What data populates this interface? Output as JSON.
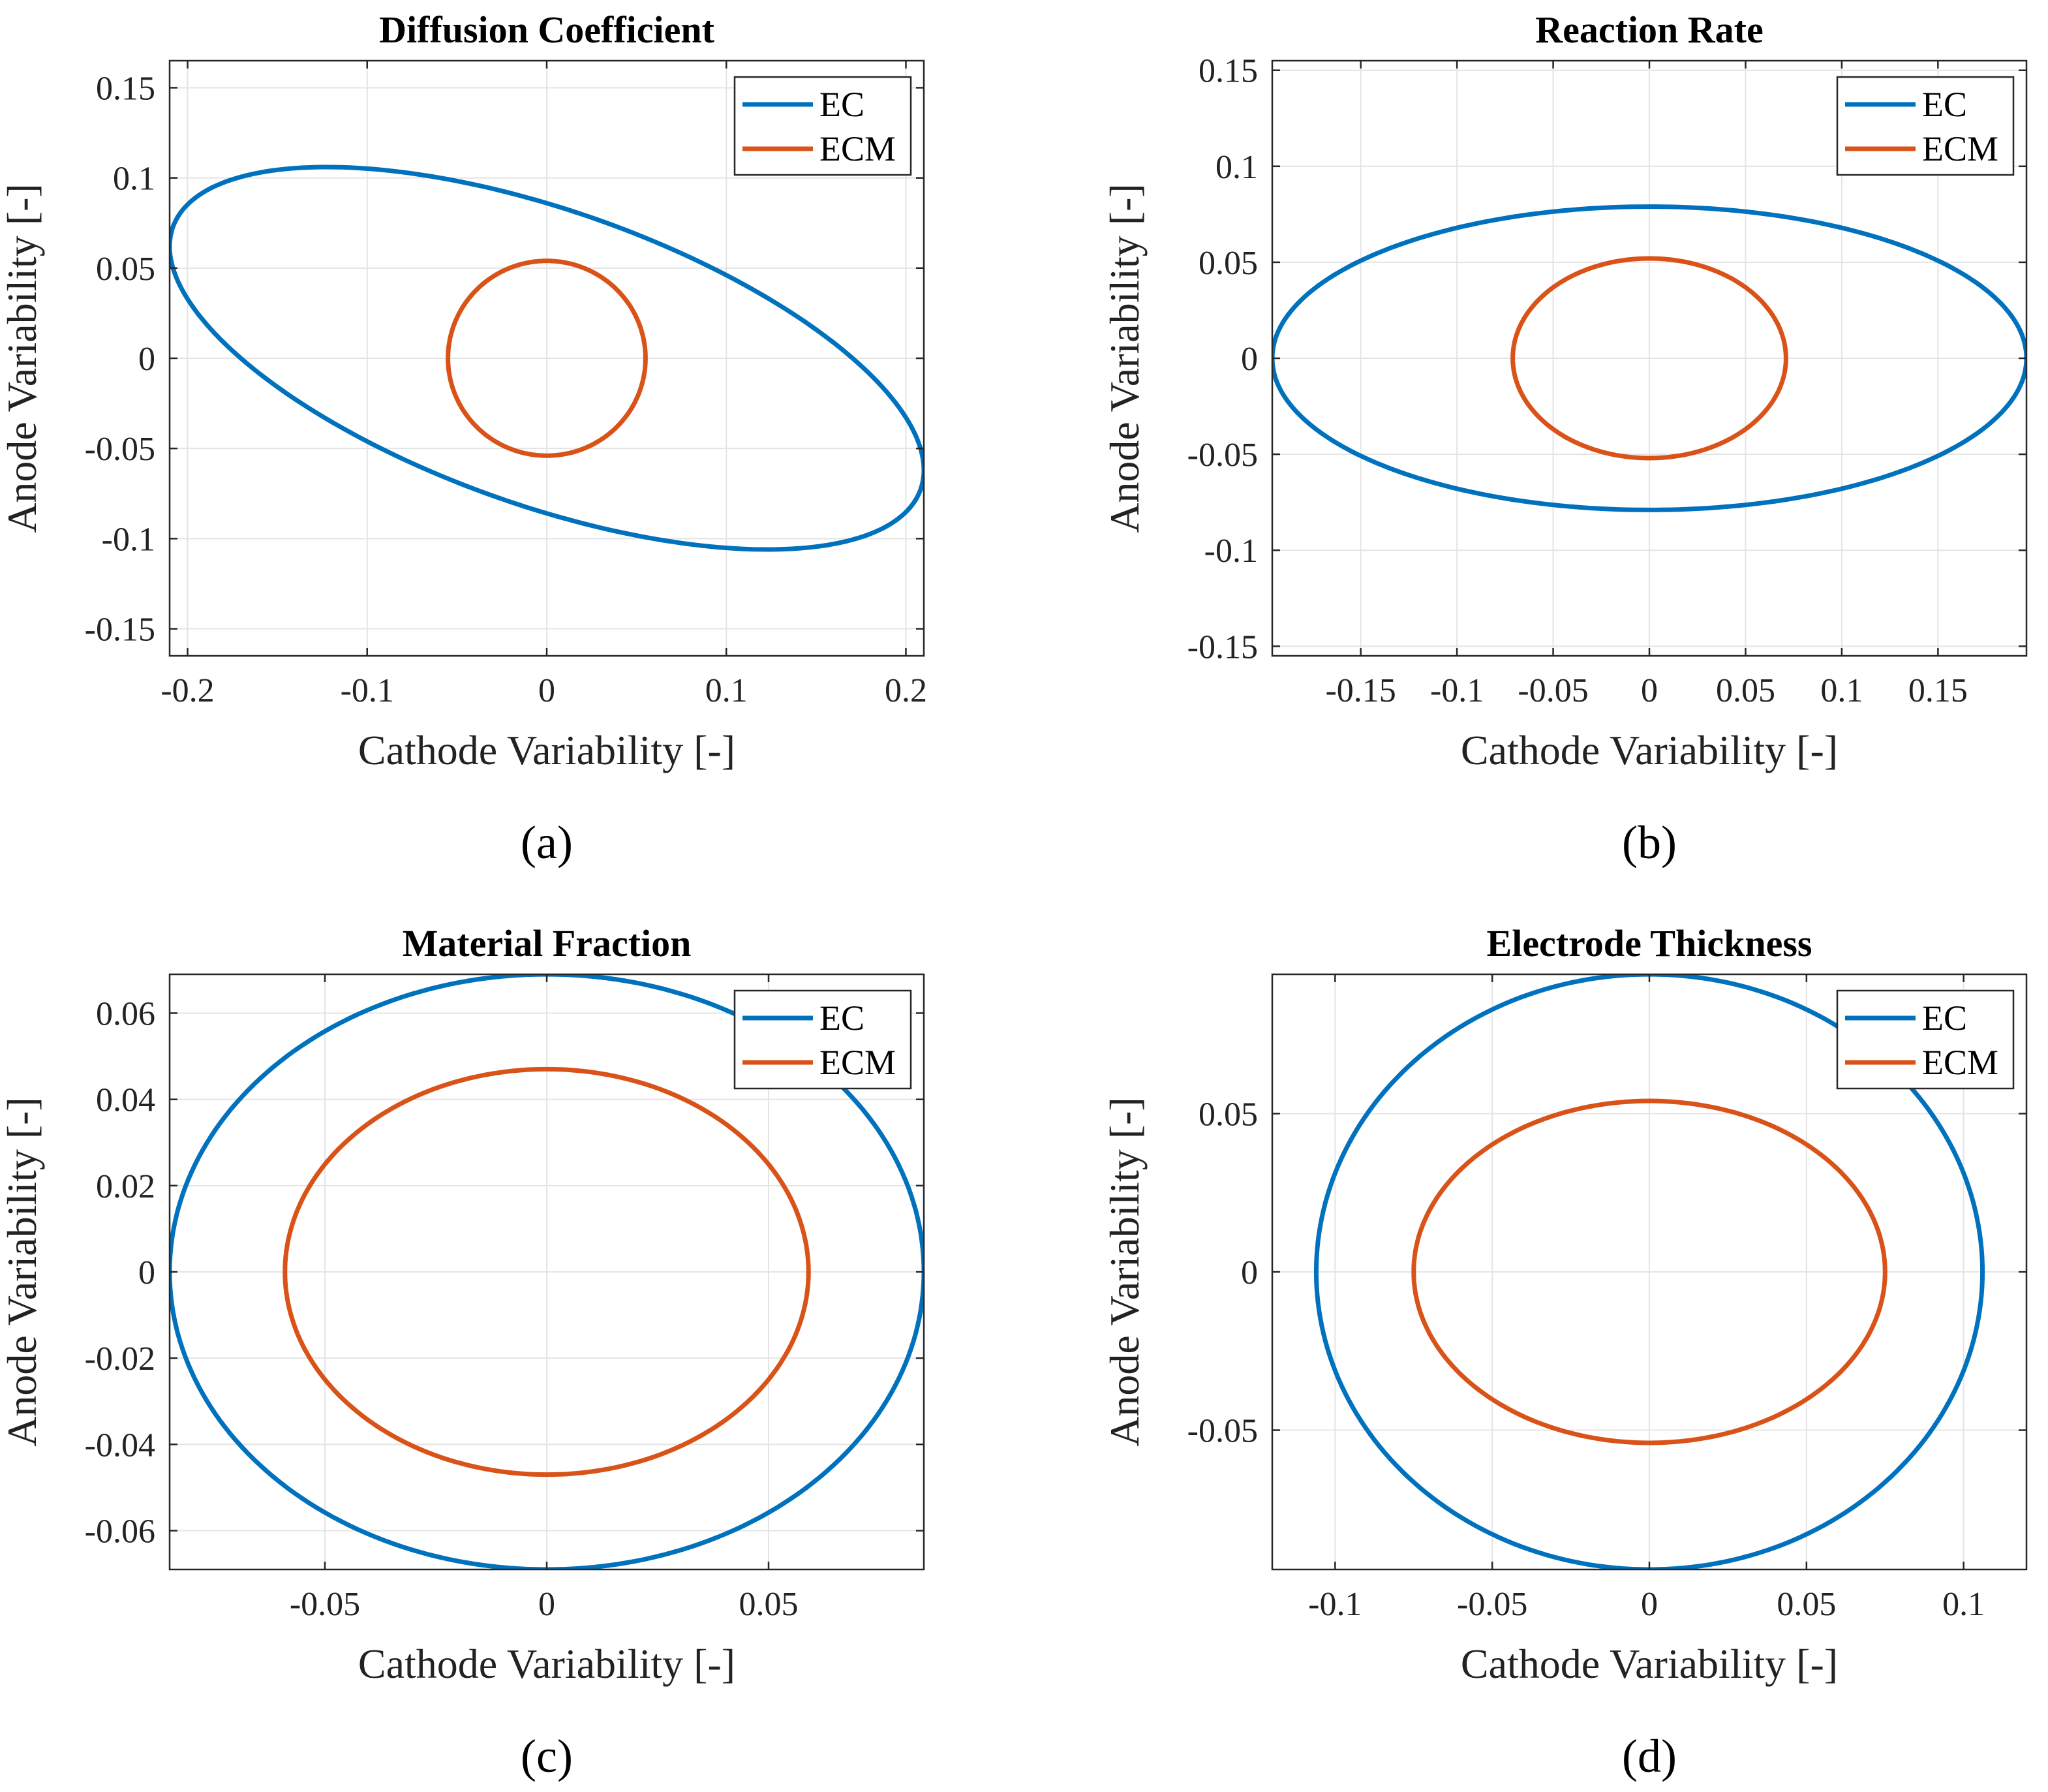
{
  "chart_data": [
    {
      "type": "line",
      "panel": "(a)",
      "title": "Diffusion Coefficient",
      "xlabel": "Cathode Variability [-]",
      "ylabel": "Anode Variability [-]",
      "xlim": [
        -0.21,
        0.21
      ],
      "ylim": [
        -0.165,
        0.165
      ],
      "xticks": [
        -0.2,
        -0.1,
        0,
        0.1,
        0.2
      ],
      "xtick_labels": [
        "-0.2",
        "-0.1",
        "0",
        "0.1",
        "0.2"
      ],
      "yticks": [
        -0.15,
        -0.1,
        -0.05,
        0,
        0.05,
        0.1,
        0.15
      ],
      "ytick_labels": [
        "-0.15",
        "-0.1",
        "-0.05",
        "0",
        "0.05",
        "0.1",
        "0.15"
      ],
      "grid": true,
      "legend_position": "top-right",
      "series": [
        {
          "name": "EC",
          "color": "#0072bd",
          "shape": "tilted-ellipse",
          "x_extent": 0.21,
          "y_extent": 0.106,
          "y_at_x0": 0.086,
          "y_at_xmax": -0.062
        },
        {
          "name": "ECM",
          "color": "#d95319",
          "shape": "ellipse",
          "center": [
            0,
            0
          ],
          "rx": 0.055,
          "ry": 0.054
        }
      ]
    },
    {
      "type": "line",
      "panel": "(b)",
      "title": "Reaction Rate",
      "xlabel": "Cathode Variability [-]",
      "ylabel": "Anode Variability [-]",
      "xlim": [
        -0.196,
        0.196
      ],
      "ylim": [
        -0.155,
        0.155
      ],
      "xticks": [
        -0.15,
        -0.1,
        -0.05,
        0,
        0.05,
        0.1,
        0.15
      ],
      "xtick_labels": [
        "-0.15",
        "-0.1",
        "-0.05",
        "0",
        "0.05",
        "0.1",
        "0.15"
      ],
      "yticks": [
        -0.15,
        -0.1,
        -0.05,
        0,
        0.05,
        0.1,
        0.15
      ],
      "ytick_labels": [
        "-0.15",
        "-0.1",
        "-0.05",
        "0",
        "0.05",
        "0.1",
        "0.15"
      ],
      "grid": true,
      "legend_position": "top-right",
      "series": [
        {
          "name": "EC",
          "color": "#0072bd",
          "shape": "ellipse",
          "center": [
            0,
            0
          ],
          "rx": 0.196,
          "ry": 0.079
        },
        {
          "name": "ECM",
          "color": "#d95319",
          "shape": "ellipse",
          "center": [
            0,
            0
          ],
          "rx": 0.071,
          "ry": 0.052
        }
      ]
    },
    {
      "type": "line",
      "panel": "(c)",
      "title": "Material Fraction",
      "xlabel": "Cathode Variability [-]",
      "ylabel": "Anode Variability [-]",
      "xlim": [
        -0.085,
        0.085
      ],
      "ylim": [
        -0.069,
        0.069
      ],
      "xticks": [
        -0.05,
        0,
        0.05
      ],
      "xtick_labels": [
        "-0.05",
        "0",
        "0.05"
      ],
      "yticks": [
        -0.06,
        -0.04,
        -0.02,
        0,
        0.02,
        0.04,
        0.06
      ],
      "ytick_labels": [
        "-0.06",
        "-0.04",
        "-0.02",
        "0",
        "0.02",
        "0.04",
        "0.06"
      ],
      "grid": true,
      "legend_position": "top-right",
      "series": [
        {
          "name": "EC",
          "color": "#0072bd",
          "shape": "ellipse",
          "center": [
            0,
            0
          ],
          "rx": 0.085,
          "ry": 0.069
        },
        {
          "name": "ECM",
          "color": "#d95319",
          "shape": "ellipse",
          "center": [
            0,
            0
          ],
          "rx": 0.059,
          "ry": 0.047
        }
      ]
    },
    {
      "type": "line",
      "panel": "(d)",
      "title": "Electrode Thickness",
      "xlabel": "Cathode Variability [-]",
      "ylabel": "Anode Variability [-]",
      "xlim": [
        -0.12,
        0.12
      ],
      "ylim": [
        -0.094,
        0.094
      ],
      "xticks": [
        -0.1,
        -0.05,
        0,
        0.05,
        0.1
      ],
      "xtick_labels": [
        "-0.1",
        "-0.05",
        "0",
        "0.05",
        "0.1"
      ],
      "yticks": [
        -0.05,
        0,
        0.05
      ],
      "ytick_labels": [
        "-0.05",
        "0",
        "0.05"
      ],
      "grid": true,
      "legend_position": "top-right",
      "series": [
        {
          "name": "EC",
          "color": "#0072bd",
          "shape": "ellipse",
          "center": [
            0,
            0
          ],
          "rx": 0.106,
          "ry": 0.094
        },
        {
          "name": "ECM",
          "color": "#d95319",
          "shape": "ellipse",
          "center": [
            0,
            0
          ],
          "rx": 0.075,
          "ry": 0.054
        }
      ]
    }
  ]
}
